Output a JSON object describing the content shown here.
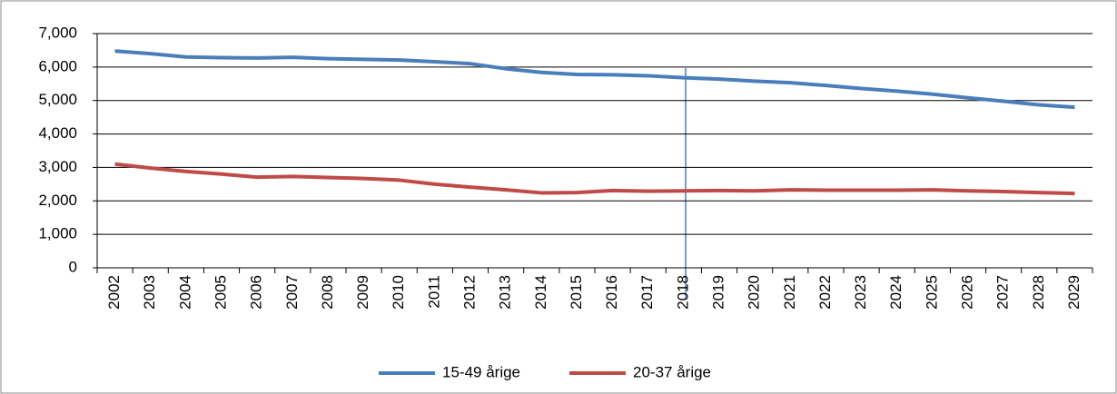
{
  "chart_data": {
    "type": "line",
    "categories": [
      "2002",
      "2003",
      "2004",
      "2005",
      "2006",
      "2007",
      "2008",
      "2009",
      "2010",
      "2011",
      "2012",
      "2013",
      "2014",
      "2015",
      "2016",
      "2017",
      "2018",
      "2019",
      "2020",
      "2021",
      "2022",
      "2023",
      "2024",
      "2025",
      "2026",
      "2027",
      "2028",
      "2029"
    ],
    "series": [
      {
        "name": "15-49 årige",
        "color": "#4a7ebb",
        "values": [
          6480,
          6400,
          6300,
          6280,
          6270,
          6290,
          6250,
          6230,
          6210,
          6160,
          6100,
          5950,
          5840,
          5780,
          5770,
          5740,
          5680,
          5640,
          5580,
          5530,
          5450,
          5360,
          5280,
          5190,
          5080,
          4980,
          4870,
          4800
        ]
      },
      {
        "name": "20-37 årige",
        "color": "#be4b48",
        "values": [
          3100,
          2980,
          2880,
          2800,
          2710,
          2730,
          2700,
          2670,
          2620,
          2500,
          2410,
          2330,
          2240,
          2250,
          2310,
          2290,
          2300,
          2310,
          2300,
          2330,
          2320,
          2320,
          2320,
          2330,
          2300,
          2280,
          2250,
          2220
        ]
      }
    ],
    "ylim": [
      0,
      7000
    ],
    "yticks": [
      0,
      {
        "value": 1000,
        "label": "1,000"
      },
      {
        "value": 2000,
        "label": "2,000"
      },
      {
        "value": 3000,
        "label": "3,000"
      },
      {
        "value": 4000,
        "label": "4,000"
      },
      {
        "value": 5000,
        "label": "5,000"
      },
      {
        "value": 6000,
        "label": "6,000"
      },
      {
        "value": 7000,
        "label": "7,000"
      }
    ],
    "grid": true,
    "legend": "bottom"
  }
}
